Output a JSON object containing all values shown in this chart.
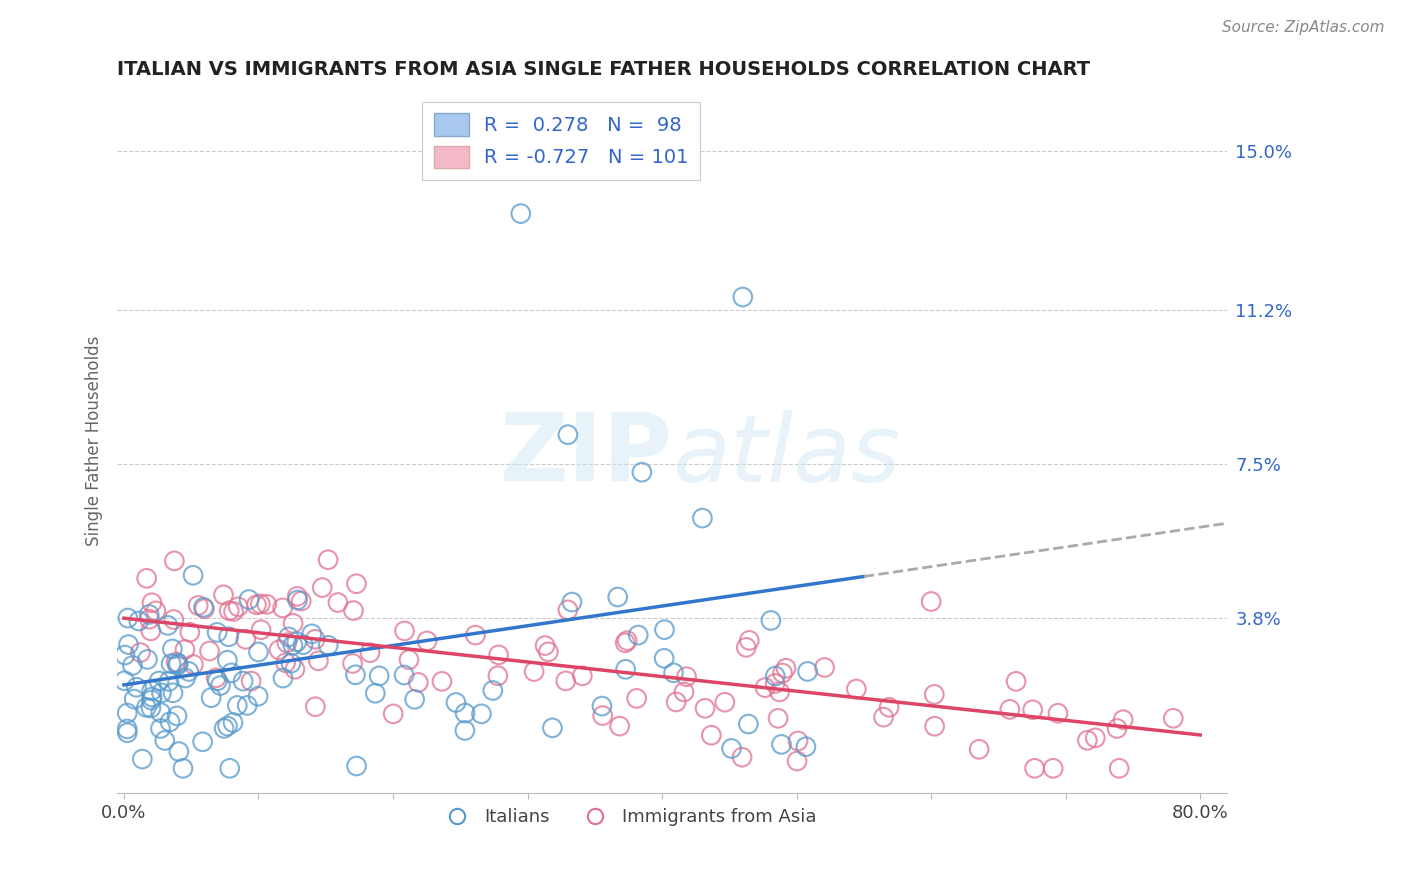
{
  "title": "ITALIAN VS IMMIGRANTS FROM ASIA SINGLE FATHER HOUSEHOLDS CORRELATION CHART",
  "source_text": "Source: ZipAtlas.com",
  "ylabel": "Single Father Households",
  "xlim": [
    -0.005,
    0.82
  ],
  "ylim": [
    -0.004,
    0.165
  ],
  "right_yticks": [
    0.038,
    0.075,
    0.112,
    0.15
  ],
  "right_yticklabels": [
    "3.8%",
    "7.5%",
    "11.2%",
    "15.0%"
  ],
  "xtick_positions": [
    0.0,
    0.1,
    0.2,
    0.3,
    0.4,
    0.5,
    0.6,
    0.7,
    0.8
  ],
  "xtick_labels": [
    "0.0%",
    "",
    "",
    "",
    "",
    "",
    "",
    "",
    "80.0%"
  ],
  "blue_scatter_color": "#7ab8e0",
  "pink_scatter_color": "#f0a0b0",
  "blue_edge_color": "#5599cc",
  "pink_edge_color": "#e07090",
  "blue_line_color": "#3377cc",
  "pink_line_color": "#dd4466",
  "dashed_line_color": "#aaaaaa",
  "legend_text_color": "#3366cc",
  "watermark_color": "#d0e8f5",
  "background_color": "#ffffff",
  "grid_color": "#cccccc",
  "N_blue": 98,
  "N_pink": 101,
  "seed": 7
}
